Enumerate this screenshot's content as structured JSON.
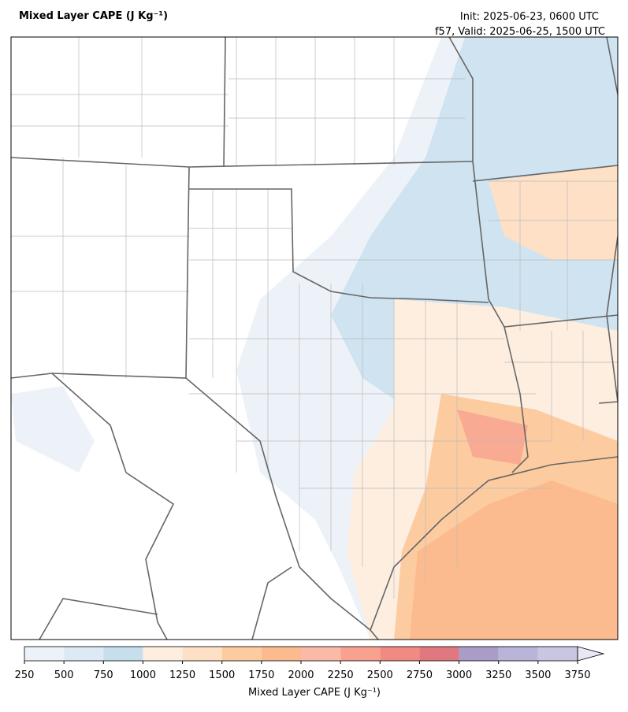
{
  "header": {
    "title": "Mixed Layer CAPE (J Kg⁻¹)",
    "init": "Init: 2025-06-23, 0600 UTC",
    "valid": "f57, Valid: 2025-06-25, 1500 UTC"
  },
  "colorbar": {
    "label": "Mixed Layer CAPE (J Kg⁻¹)",
    "levels": [
      250,
      500,
      750,
      1000,
      1250,
      1500,
      1750,
      2000,
      2250,
      2500,
      2750,
      3000,
      3250,
      3500,
      3750
    ],
    "colors": [
      "#edf2f9",
      "#dde9f5",
      "#c7dfed",
      "#fdeee0",
      "#fde0c6",
      "#fdcba0",
      "#fbbb8e",
      "#fbbaa8",
      "#f8a18f",
      "#f08a82",
      "#e07880",
      "#a99dc8",
      "#b8b5d8",
      "#c9c6e1",
      "#e9e7f3"
    ],
    "extend": "max"
  }
}
